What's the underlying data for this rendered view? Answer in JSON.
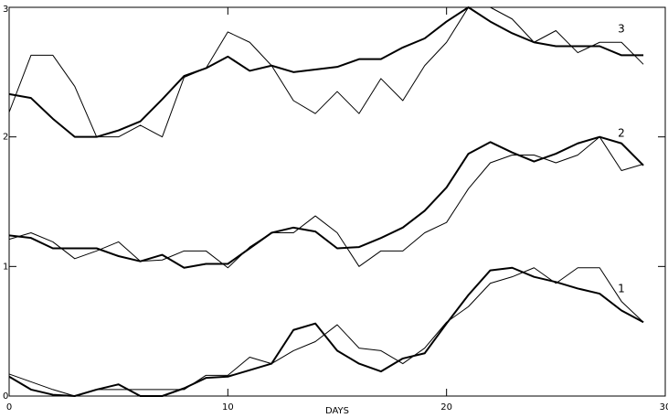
{
  "chart_data": {
    "type": "line",
    "xlabel": "DAYS",
    "annotations": [
      "1",
      "2",
      "3"
    ],
    "x": [
      0,
      1,
      2,
      3,
      4,
      5,
      6,
      7,
      8,
      9,
      10,
      11,
      12,
      13,
      14,
      15,
      16,
      17,
      18,
      19,
      20,
      21,
      22,
      23,
      24,
      25,
      26,
      27,
      28,
      29
    ],
    "xlim": [
      0,
      30
    ],
    "xticks": [
      0,
      10,
      20,
      30
    ],
    "ylim": [
      0,
      3
    ],
    "yticks": [
      0,
      1,
      2,
      3
    ],
    "grid": false,
    "series": [
      {
        "color": "#000000",
        "width": 2,
        "values": [
          2.33,
          2.3,
          2.14,
          2.0,
          2.0,
          2.05,
          2.12,
          2.29,
          2.47,
          2.53,
          2.62,
          2.51,
          2.55,
          2.5,
          2.52,
          2.54,
          2.6,
          2.6,
          2.69,
          2.76,
          2.89,
          3.0,
          2.89,
          2.8,
          2.73,
          2.7,
          2.7,
          2.7,
          2.63,
          2.63
        ]
      },
      {
        "color": "#000000",
        "width": 1,
        "values": [
          2.19,
          2.63,
          2.63,
          2.39,
          2.0,
          2.0,
          2.09,
          2.0,
          2.46,
          2.53,
          2.81,
          2.73,
          2.55,
          2.28,
          2.18,
          2.35,
          2.18,
          2.45,
          2.28,
          2.55,
          2.73,
          3.0,
          3.0,
          2.91,
          2.73,
          2.82,
          2.65,
          2.73,
          2.73,
          2.56
        ]
      },
      {
        "color": "#000000",
        "width": 2,
        "values": [
          1.24,
          1.22,
          1.14,
          1.14,
          1.14,
          1.08,
          1.04,
          1.09,
          0.99,
          1.02,
          1.02,
          1.14,
          1.26,
          1.3,
          1.27,
          1.14,
          1.15,
          1.22,
          1.3,
          1.43,
          1.61,
          1.87,
          1.96,
          1.88,
          1.81,
          1.87,
          1.95,
          2.0,
          1.95,
          1.78
        ]
      },
      {
        "color": "#000000",
        "width": 1,
        "values": [
          1.21,
          1.26,
          1.19,
          1.06,
          1.12,
          1.19,
          1.04,
          1.05,
          1.12,
          1.12,
          0.99,
          1.15,
          1.26,
          1.26,
          1.39,
          1.26,
          1.0,
          1.12,
          1.12,
          1.26,
          1.34,
          1.6,
          1.8,
          1.86,
          1.86,
          1.8,
          1.86,
          2.0,
          1.74,
          1.79
        ]
      },
      {
        "color": "#000000",
        "width": 2,
        "values": [
          0.15,
          0.05,
          0.01,
          0,
          0.05,
          0.09,
          0,
          0,
          0.06,
          0.14,
          0.15,
          0.2,
          0.25,
          0.51,
          0.56,
          0.35,
          0.25,
          0.19,
          0.29,
          0.33,
          0.56,
          0.78,
          0.97,
          0.99,
          0.92,
          0.88,
          0.83,
          0.79,
          0.66,
          0.57
        ]
      },
      {
        "color": "#000000",
        "width": 1,
        "values": [
          0.17,
          0.11,
          0.05,
          0,
          0.05,
          0.05,
          0.05,
          0.05,
          0.05,
          0.16,
          0.16,
          0.3,
          0.25,
          0.35,
          0.42,
          0.55,
          0.37,
          0.35,
          0.25,
          0.37,
          0.57,
          0.69,
          0.87,
          0.92,
          0.99,
          0.87,
          0.99,
          0.99,
          0.73,
          0.57
        ]
      }
    ]
  }
}
